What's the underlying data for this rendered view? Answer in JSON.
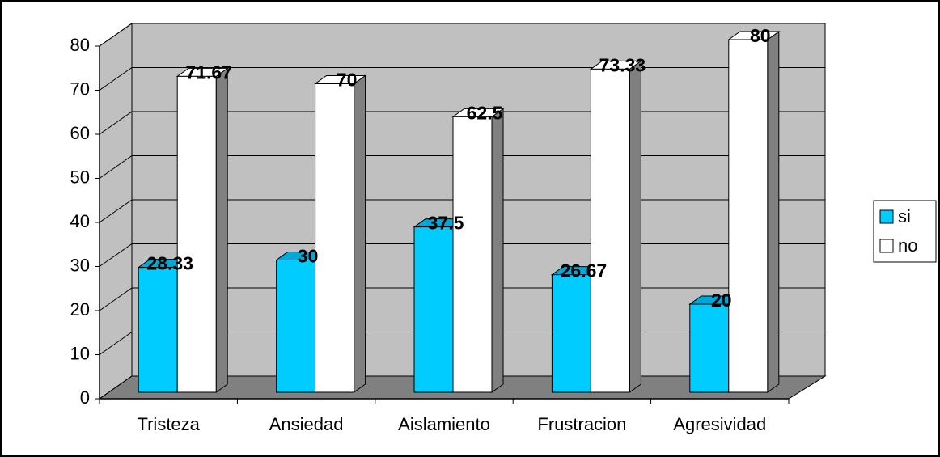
{
  "chart_data": {
    "type": "bar3d",
    "categories": [
      "Tristeza",
      "Ansiedad",
      "Aislamiento",
      "Frustracion",
      "Agresividad"
    ],
    "series": [
      {
        "name": "si",
        "color": "#00ccff",
        "values": [
          28.33,
          30,
          37.5,
          26.67,
          20
        ]
      },
      {
        "name": "no",
        "color": "#ffffff",
        "values": [
          71.67,
          70,
          62.5,
          73.33,
          80
        ]
      }
    ],
    "ylim": [
      0,
      80
    ],
    "yticks": [
      0,
      10,
      20,
      30,
      40,
      50,
      60,
      70,
      80
    ],
    "grid": true,
    "legend": "right"
  }
}
